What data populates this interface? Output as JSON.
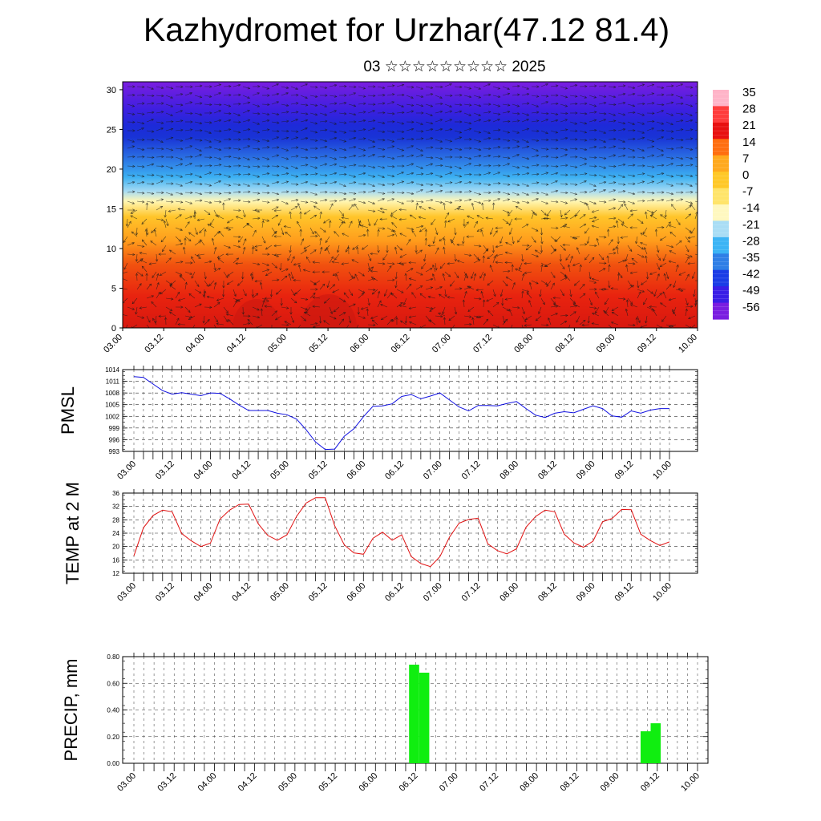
{
  "title": "Kazhydromet for Urzhar(47.12 81.4)",
  "subtitle": "03 ☆☆☆☆☆☆☆☆☆ 2025",
  "time_labels": [
    "03.00",
    "03.12",
    "04.00",
    "04.12",
    "05.00",
    "05.12",
    "06.00",
    "06.12",
    "07.00",
    "07.12",
    "08.00",
    "08.12",
    "09.00",
    "09.12",
    "10.00"
  ],
  "chart_data": [
    {
      "type": "heatmap",
      "name": "cross-section",
      "yticks": [
        0,
        5,
        10,
        15,
        20,
        25,
        30
      ],
      "ylim": [
        0,
        31
      ],
      "colorbar": {
        "labels": [
          "35",
          "28",
          "21",
          "14",
          "7",
          "0",
          "-7",
          "-14",
          "-21",
          "-28",
          "-35",
          "-42",
          "-49",
          "-56"
        ],
        "colors": [
          "#ffb4c8",
          "#ff3c3c",
          "#e81010",
          "#ff6e10",
          "#ffa91e",
          "#ffc828",
          "#ffe46a",
          "#fff8c0",
          "#a9ddf5",
          "#3cb4f5",
          "#2f7fe6",
          "#1b3ce6",
          "#3a1ee6",
          "#7a1ee0"
        ]
      },
      "bands": [
        {
          "z": 0,
          "color": "#d8180f"
        },
        {
          "z": 4,
          "color": "#e8230f"
        },
        {
          "z": 8,
          "color": "#f1520f"
        },
        {
          "z": 11,
          "color": "#ff9d1c"
        },
        {
          "z": 14,
          "color": "#ffc52a"
        },
        {
          "z": 16,
          "color": "#fff7b6"
        },
        {
          "z": 17.2,
          "color": "#a8dcf3"
        },
        {
          "z": 19,
          "color": "#3cb0f2"
        },
        {
          "z": 21.5,
          "color": "#2a6ee2"
        },
        {
          "z": 24,
          "color": "#1933d6"
        },
        {
          "z": 25.5,
          "color": "#1d2ad8"
        },
        {
          "z": 27.5,
          "color": "#3d1fe0"
        },
        {
          "z": 31,
          "color": "#7b1ee0"
        }
      ]
    },
    {
      "type": "line",
      "ylabel": "PMSL",
      "yticks": [
        993,
        996,
        999,
        1002,
        1005,
        1008,
        1011,
        1014
      ],
      "ylim": [
        993,
        1014
      ],
      "color": "#1010e0",
      "x": [
        0,
        1,
        2,
        3,
        4,
        5,
        6,
        7,
        8,
        9,
        10,
        11,
        12,
        13,
        14,
        15,
        16,
        17,
        18,
        19,
        20,
        21,
        22,
        23,
        24,
        25,
        26,
        27,
        28,
        29,
        30,
        31,
        32,
        33,
        34,
        35,
        36,
        37,
        38,
        39,
        40,
        41,
        42,
        43,
        44,
        45,
        46,
        47,
        48,
        49,
        50,
        51,
        52,
        53,
        54,
        55,
        56
      ],
      "values": [
        1012.2,
        1012,
        1010.3,
        1008.6,
        1007.7,
        1008.1,
        1007.7,
        1007.3,
        1008,
        1007.9,
        1006.5,
        1004.9,
        1003.5,
        1003.5,
        1003.5,
        1002.8,
        1002.4,
        1001.3,
        998.6,
        995.4,
        993.5,
        993.6,
        996.9,
        998.8,
        1001.9,
        1004.6,
        1004.7,
        1005.2,
        1007.1,
        1007.6,
        1006.5,
        1007.2,
        1008,
        1006.2,
        1004.4,
        1003.4,
        1004.8,
        1004.8,
        1004.7,
        1005.3,
        1005.8,
        1004,
        1002.3,
        1001.7,
        1002.8,
        1003.2,
        1002.9,
        1003.8,
        1004.7,
        1004,
        1002.1,
        1001.8,
        1003.4,
        1002.8,
        1003.6,
        1004,
        1004
      ],
      "x_ticks_at": [
        0,
        4,
        8,
        12,
        16,
        20,
        24,
        28,
        32,
        36,
        40,
        44,
        48,
        52,
        56
      ]
    },
    {
      "type": "line",
      "ylabel": "TEMP at 2 M",
      "yticks": [
        12,
        16,
        20,
        24,
        28,
        32,
        36
      ],
      "ylim": [
        12,
        36
      ],
      "color": "#e01010",
      "values": [
        17.2,
        25.6,
        29.3,
        30.9,
        30.4,
        23.9,
        21.7,
        20,
        21,
        28.2,
        30.9,
        32.6,
        32.7,
        26.8,
        23.3,
        21.9,
        23.5,
        29,
        33,
        34.6,
        34.6,
        26.2,
        20.5,
        18.1,
        17.7,
        22.5,
        24.3,
        21.9,
        23.5,
        17,
        14.9,
        14,
        17,
        22.8,
        27,
        28.1,
        28.5,
        20.8,
        18.8,
        17.8,
        19.3,
        25.8,
        29,
        30.9,
        30.4,
        23.7,
        21.1,
        19.8,
        21.6,
        27.4,
        28.4,
        31.1,
        31,
        23.7,
        21.8,
        20.3,
        21.4
      ]
    },
    {
      "type": "bar",
      "ylabel": "PRECIP, mm",
      "yticks": [
        "0.00",
        "0.20",
        "0.40",
        "0.60",
        "0.80"
      ],
      "ylim": [
        0,
        0.8
      ],
      "color": "#10ee10",
      "bars": [
        {
          "slot": 28,
          "value": 0.74
        },
        {
          "slot": 29,
          "value": 0.68
        },
        {
          "slot": 51,
          "value": 0.24
        },
        {
          "slot": 52,
          "value": 0.3
        }
      ]
    }
  ]
}
